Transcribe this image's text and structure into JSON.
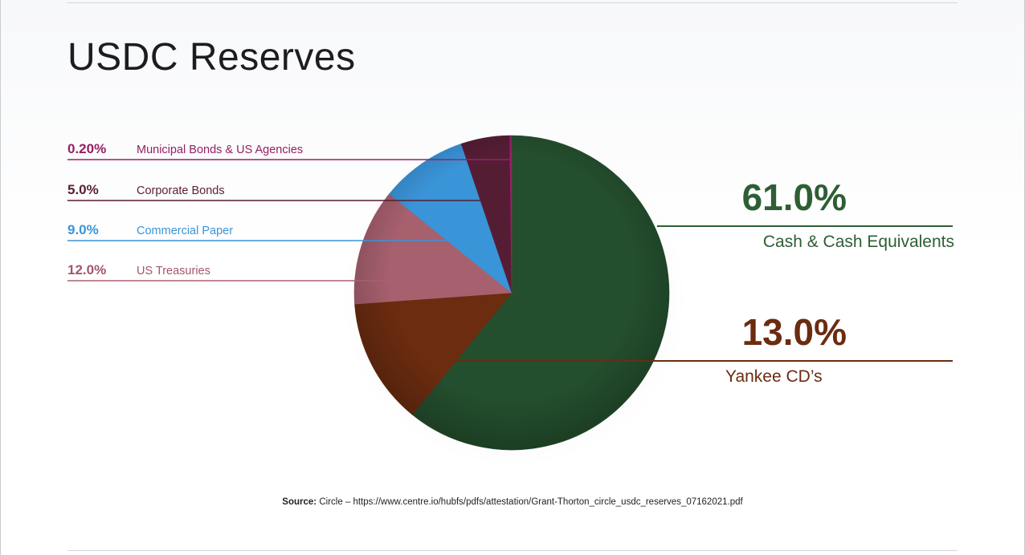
{
  "title": "USDC Reserves",
  "source": {
    "label": "Source:",
    "text": "Circle – https://www.centre.io/hubfs/pdfs/attestation/Grant-Thorton_circle_usdc_reserves_07162021.pdf"
  },
  "chart_data": {
    "type": "pie",
    "start_angle_deg": 0,
    "direction": "clockwise",
    "slices": [
      {
        "label": "Cash & Cash Equivalents",
        "value_label": "61.0%",
        "value": 61.0,
        "color": "#244f2e",
        "text_color": "#2e5e34",
        "side": "right"
      },
      {
        "label": "Yankee CD’s",
        "value_label": "13.0%",
        "value": 13.0,
        "color": "#6b2c10",
        "text_color": "#6b2c10",
        "side": "right"
      },
      {
        "label": "US Treasuries",
        "value_label": "12.0%",
        "value": 12.0,
        "color": "#a7606e",
        "text_color": "#a4566a",
        "side": "left"
      },
      {
        "label": "Commercial Paper",
        "value_label": "9.0%",
        "value": 9.0,
        "color": "#3a94d8",
        "text_color": "#3a94d8",
        "side": "left"
      },
      {
        "label": "Corporate Bonds",
        "value_label": "5.0%",
        "value": 5.0,
        "color": "#551d34",
        "text_color": "#5a1e34",
        "side": "left"
      },
      {
        "label": "Municipal Bonds & US Agencies",
        "value_label": "0.20%",
        "value": 0.2,
        "color": "#9a1f6a",
        "text_color": "#962063",
        "side": "left"
      }
    ]
  }
}
